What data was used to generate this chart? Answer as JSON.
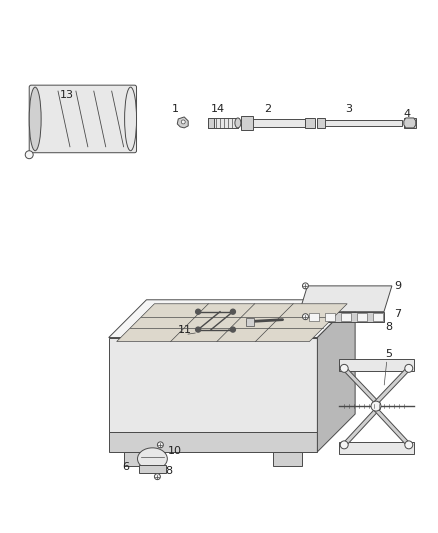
{
  "bg_color": "#ffffff",
  "fig_width": 4.38,
  "fig_height": 5.33,
  "dpi": 100,
  "line_color": "#4a4a4a",
  "label_color": "#222222",
  "fill_light": "#e8e8e8",
  "fill_mid": "#d0d0d0",
  "fill_dark": "#b8b8b8",
  "fill_white": "#f5f5f5"
}
